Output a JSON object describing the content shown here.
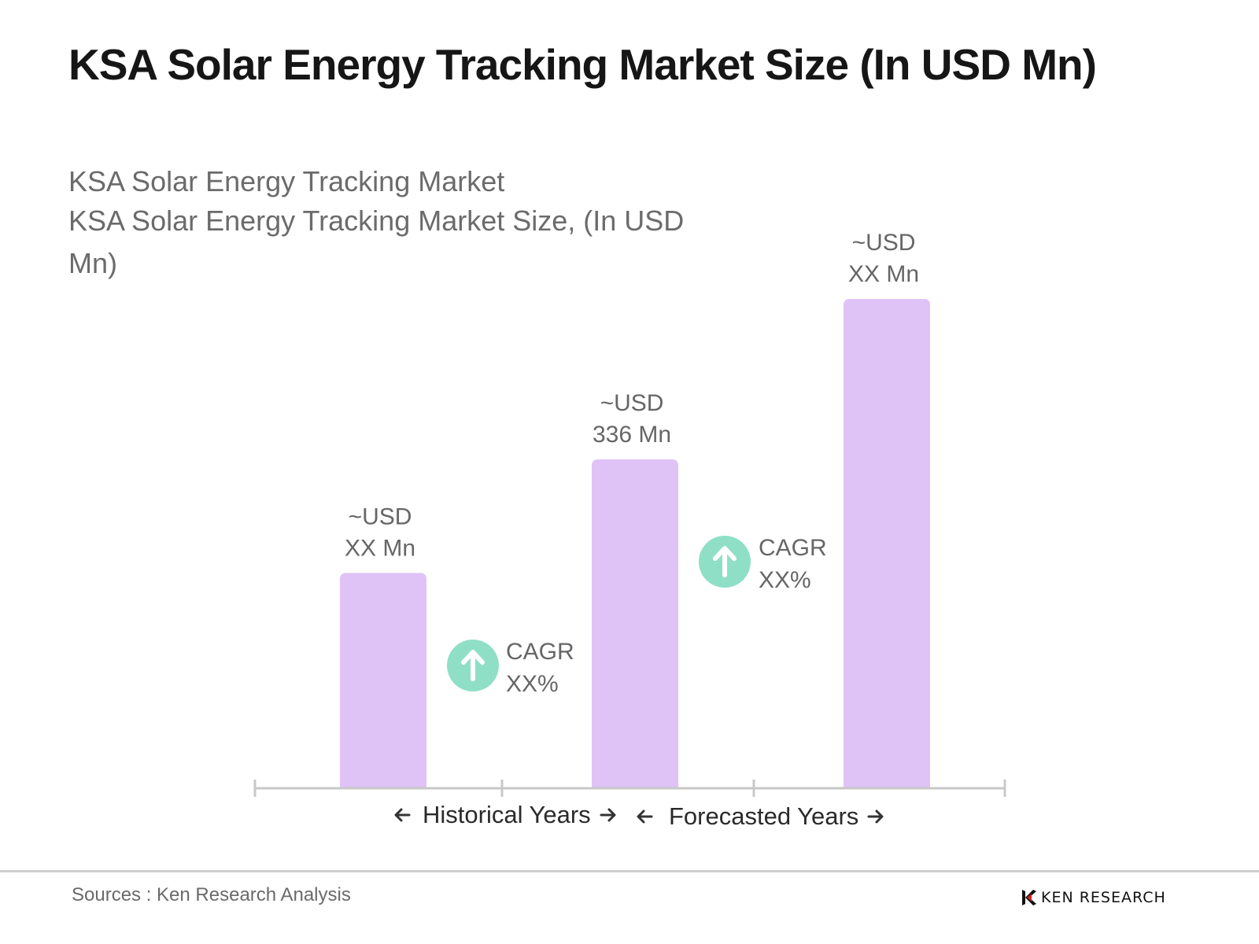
{
  "title": "KSA Solar Energy Tracking Market Size (In USD Mn)",
  "subtitle": "KSA Solar Energy Tracking Market",
  "subtitle2": "KSA Solar Energy Tracking Market Size, (In USD Mn)",
  "footer": {
    "source": "Sources : Ken Research Analysis",
    "brand": "KEN RESEARCH"
  },
  "colors": {
    "bar": "#dfc3f7",
    "cagr_circle": "#8fdfc6",
    "axis": "#c8c8c8"
  },
  "chart_data": {
    "type": "bar",
    "categories": [
      "",
      "",
      ""
    ],
    "values": [
      220,
      336,
      500
    ],
    "value_labels": [
      [
        "~USD",
        "XX Mn"
      ],
      [
        "~USD",
        "336 Mn"
      ],
      [
        "~USD",
        "XX Mn"
      ]
    ],
    "ylim": [
      0,
      560
    ],
    "grid": false,
    "legend": "none",
    "annotations": {
      "cagr": [
        {
          "line1": "CAGR",
          "line2": "XX%",
          "icon": "arrow-up-icon"
        },
        {
          "line1": "CAGR",
          "line2": "XX%",
          "icon": "arrow-up-icon"
        }
      ],
      "periods": [
        {
          "label": "Historical Years"
        },
        {
          "label": "Forecasted Years"
        }
      ]
    }
  }
}
